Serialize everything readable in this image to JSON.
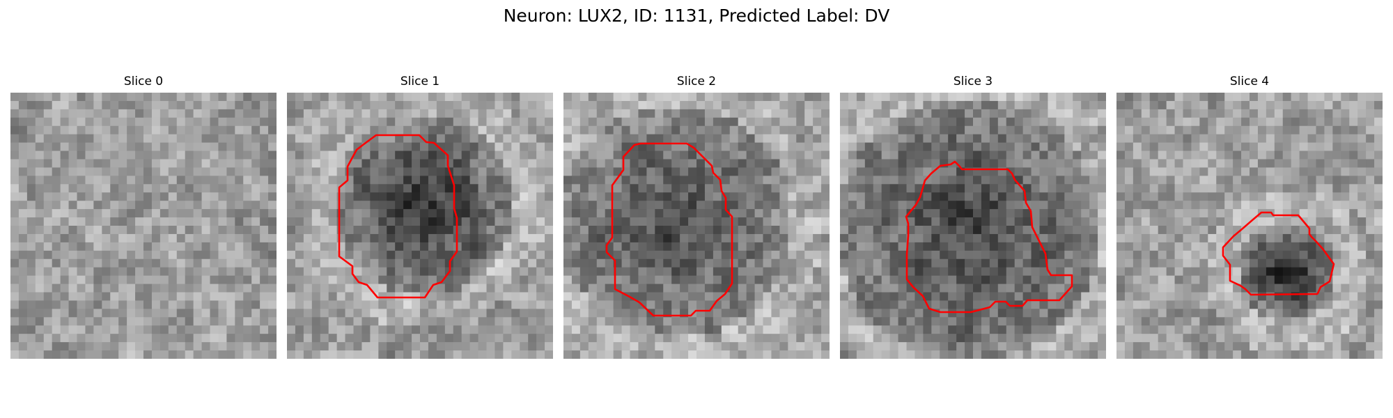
{
  "figure": {
    "title": "Neuron: LUX2, ID: 1131, Predicted Label: DV"
  },
  "colors": {
    "contour": "#ff0000",
    "background": "#ffffff"
  },
  "slices": [
    {
      "label": "Slice 0",
      "has_contour": false
    },
    {
      "label": "Slice 1",
      "has_contour": true
    },
    {
      "label": "Slice 2",
      "has_contour": true
    },
    {
      "label": "Slice 3",
      "has_contour": true
    },
    {
      "label": "Slice 4",
      "has_contour": true
    }
  ]
}
